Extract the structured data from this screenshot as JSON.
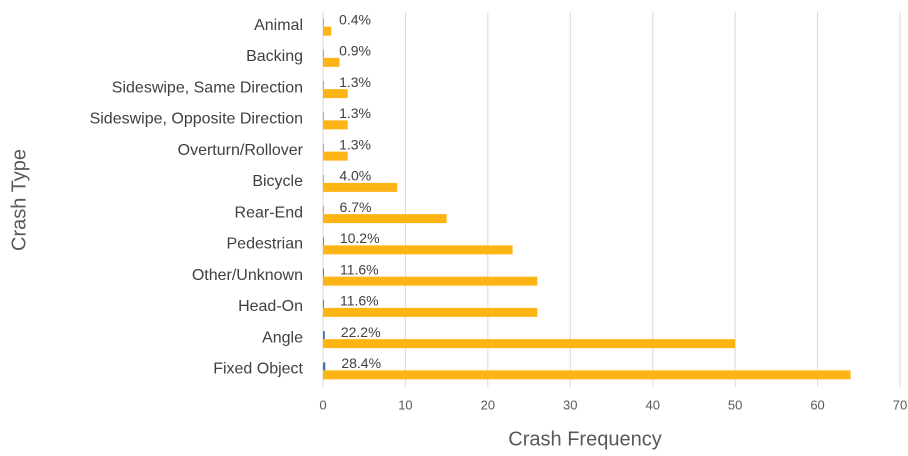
{
  "chart_data": {
    "type": "bar",
    "orientation": "horizontal",
    "x_label": "Crash Frequency",
    "y_label": "Crash Type",
    "categories": [
      "Animal",
      "Backing",
      "Sideswipe, Same Direction",
      "Sideswipe, Opposite Direction",
      "Overturn/Rollover",
      "Bicycle",
      "Rear-End",
      "Pedestrian",
      "Other/Unknown",
      "Head-On",
      "Angle",
      "Fixed Object"
    ],
    "series": [
      {
        "color": "#4472c4",
        "values": [
          0.004,
          0.009,
          0.013,
          0.013,
          0.013,
          0.04,
          0.067,
          0.102,
          0.116,
          0.116,
          0.222,
          0.284
        ],
        "value_labels": [
          "0.4%",
          "0.9%",
          "1.3%",
          "1.3%",
          "1.3%",
          "4.0%",
          "6.7%",
          "10.2%",
          "11.6%",
          "11.6%",
          "22.2%",
          "28.4%"
        ]
      },
      {
        "color": "#fdb515",
        "values": [
          1,
          2,
          3,
          3,
          3,
          9,
          15,
          23,
          26,
          26,
          50,
          64
        ]
      }
    ],
    "xlim": [
      0,
      70
    ],
    "xticks": [
      0,
      10,
      20,
      30,
      40,
      50,
      60,
      70
    ],
    "grid": true
  }
}
